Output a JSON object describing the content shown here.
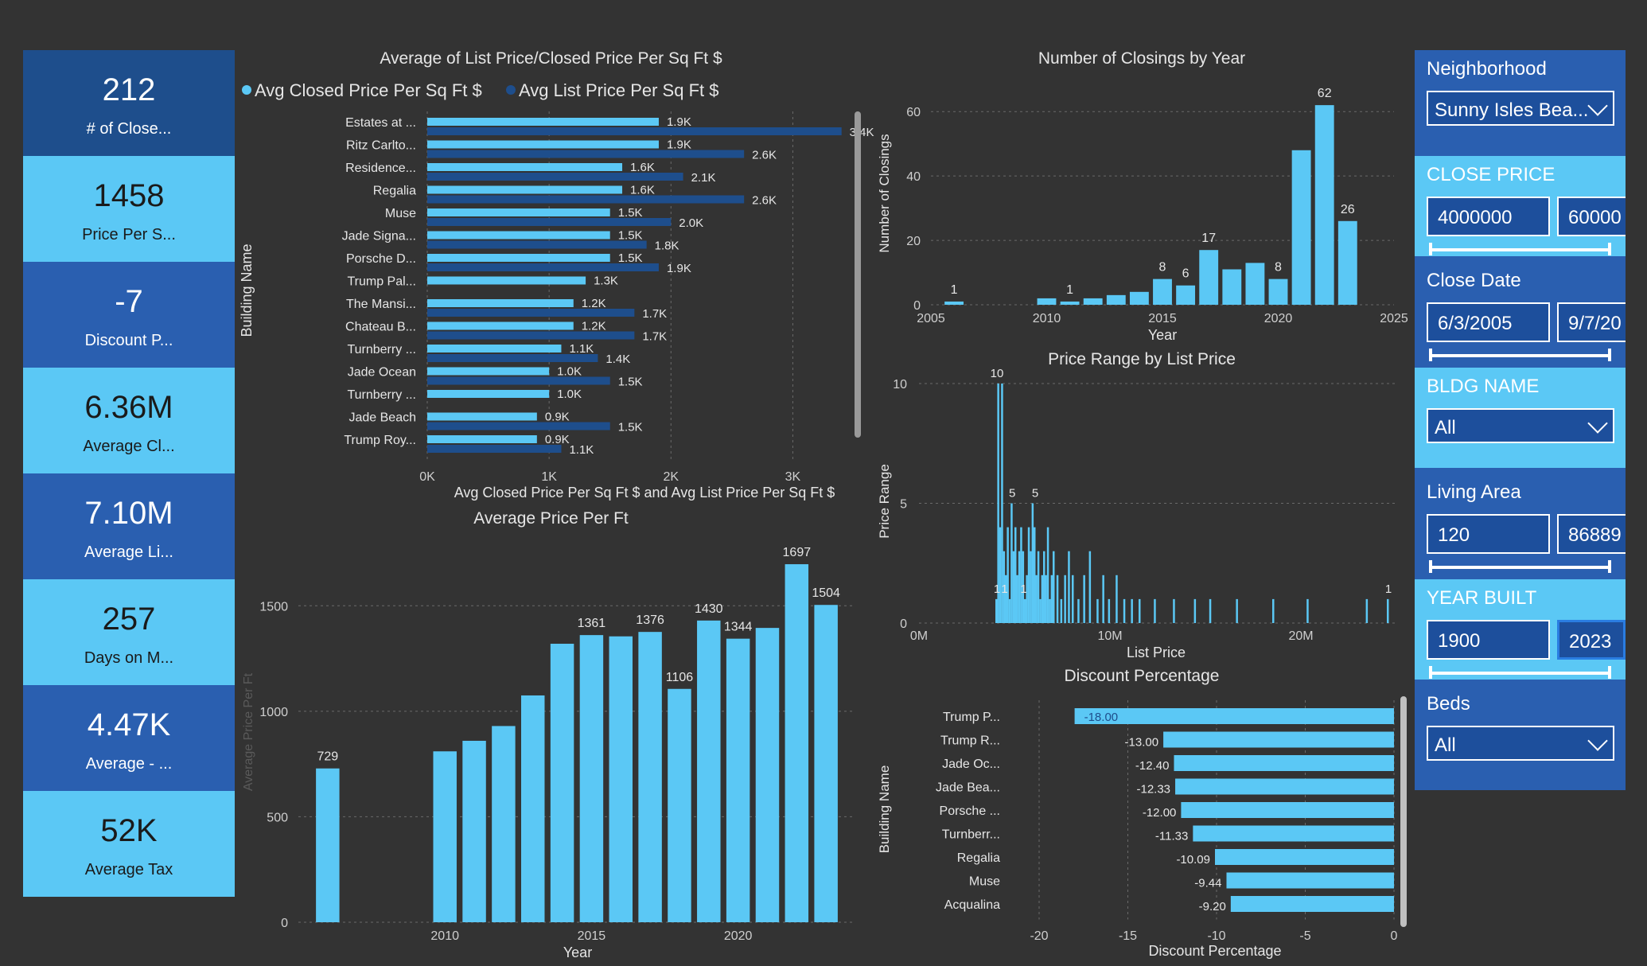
{
  "kpis": [
    {
      "value": "212",
      "label": "# of Close...",
      "color": "#1e4e8c"
    },
    {
      "value": "1458",
      "label": "Price Per S...",
      "color": "#5bc8f5"
    },
    {
      "value": "-7",
      "label": "Discount P...",
      "color": "#2a5fb0"
    },
    {
      "value": "6.36M",
      "label": "Average Cl...",
      "color": "#5bc8f5"
    },
    {
      "value": "7.10M",
      "label": "Average Li...",
      "color": "#2a5fb0"
    },
    {
      "value": "257",
      "label": "Days on M...",
      "color": "#5bc8f5"
    },
    {
      "value": "4.47K",
      "label": "Average - ...",
      "color": "#2a5fb0"
    },
    {
      "value": "52K",
      "label": "Average Tax",
      "color": "#5bc8f5"
    }
  ],
  "slicers": {
    "neighborhood": {
      "title": "Neighborhood",
      "value": "Sunny Isles Bea..."
    },
    "close_price": {
      "title": "CLOSE PRICE",
      "min": "4000000",
      "max": "60000"
    },
    "close_date": {
      "title": "Close Date",
      "min": "6/3/2005",
      "max": "9/7/20"
    },
    "bldg_name": {
      "title": "BLDG NAME",
      "value": "All"
    },
    "living_area": {
      "title": "Living Area",
      "min": "120",
      "max": "86889"
    },
    "year_built": {
      "title": "YEAR BUILT",
      "min": "1900",
      "max": "2023"
    },
    "beds": {
      "title": "Beds",
      "value": "All"
    }
  },
  "colors": {
    "light_blue": "#5bc8f5",
    "dark_blue": "#1e4e8c",
    "mid_blue": "#2a5fb0",
    "background": "#333333"
  },
  "chart_data": [
    {
      "id": "price_per_sqft",
      "type": "bar",
      "orientation": "horizontal",
      "title": "Average of List Price/Closed Price Per Sq Ft $",
      "xlabel": "Avg Closed Price Per Sq Ft $ and Avg List Price Per Sq Ft $",
      "ylabel": "Building Name",
      "legend_position": "top",
      "xlim": [
        0,
        3500
      ],
      "x_ticks": [
        "0K",
        "1K",
        "2K",
        "3K"
      ],
      "categories": [
        "Estates at ...",
        "Ritz Carlto...",
        "Residence...",
        "Regalia",
        "Muse",
        "Jade Signa...",
        "Porsche D...",
        "Trump Pal...",
        "The Mansi...",
        "Chateau B...",
        "Turnberry ...",
        "Jade Ocean",
        "Turnberry ...",
        "Jade Beach",
        "Trump Roy..."
      ],
      "series": [
        {
          "name": "Avg Closed Price Per Sq Ft $",
          "color": "#5bc8f5",
          "values": [
            1900,
            1900,
            1600,
            1600,
            1500,
            1500,
            1500,
            1300,
            1200,
            1200,
            1100,
            1000,
            1000,
            900,
            900
          ],
          "labels": [
            "1.9K",
            "1.9K",
            "1.6K",
            "1.6K",
            "1.5K",
            "1.5K",
            "1.5K",
            "1.3K",
            "1.2K",
            "1.2K",
            "1.1K",
            "1.0K",
            "1.0K",
            "0.9K",
            "0.9K"
          ]
        },
        {
          "name": "Avg List Price Per Sq Ft $",
          "color": "#1e4e8c",
          "values": [
            3400,
            2600,
            2100,
            2600,
            2000,
            1800,
            1900,
            null,
            1700,
            1700,
            1400,
            1500,
            null,
            1500,
            1100
          ],
          "labels": [
            "3.4K",
            "2.6K",
            "2.1K",
            "2.6K",
            "2.0K",
            "1.8K",
            "1.9K",
            "",
            "1.7K",
            "1.7K",
            "1.4K",
            "1.5K",
            "",
            "1.5K",
            "1.1K"
          ]
        }
      ]
    },
    {
      "id": "closings_by_year",
      "type": "bar",
      "title": "Number of Closings by Year",
      "xlabel": "Year",
      "ylabel": "Number of Closings",
      "xlim": [
        2005,
        2025
      ],
      "ylim": [
        0,
        65
      ],
      "x_ticks": [
        2005,
        2010,
        2015,
        2020,
        2025
      ],
      "y_ticks": [
        0,
        20,
        40,
        60
      ],
      "x": [
        2006,
        2010,
        2011,
        2012,
        2013,
        2014,
        2015,
        2016,
        2017,
        2018,
        2019,
        2020,
        2021,
        2022,
        2023
      ],
      "values": [
        1,
        2,
        1,
        2,
        3,
        4,
        8,
        6,
        17,
        11,
        13,
        8,
        48,
        62,
        26
      ],
      "labels": [
        "1",
        "",
        "1",
        "",
        "",
        "",
        "8",
        "6",
        "17",
        "",
        "",
        "8",
        "",
        "62",
        "26"
      ]
    },
    {
      "id": "avg_price_per_ft",
      "type": "bar",
      "title": "Average Price Per Ft",
      "xlabel": "Year",
      "ylabel": "Average Price Per Ft",
      "xlim": [
        2005,
        2024
      ],
      "ylim": [
        0,
        1750
      ],
      "x_ticks": [
        2010,
        2015,
        2020
      ],
      "y_ticks": [
        0,
        500,
        1000,
        1500
      ],
      "x": [
        2006,
        2010,
        2011,
        2012,
        2013,
        2014,
        2015,
        2016,
        2017,
        2018,
        2019,
        2020,
        2021,
        2022,
        2023
      ],
      "values": [
        729,
        810,
        860,
        930,
        1075,
        1320,
        1361,
        1355,
        1376,
        1106,
        1430,
        1344,
        1395,
        1697,
        1504
      ],
      "labels": [
        "729",
        "",
        "",
        "",
        "",
        "",
        "1361",
        "",
        "1376",
        "1106",
        "1430",
        "1344",
        "",
        "1697",
        "1504"
      ]
    },
    {
      "id": "price_range",
      "type": "bar",
      "title": "Price Range by List Price",
      "xlabel": "List Price",
      "ylabel": "Price Range",
      "xlim": [
        0,
        25
      ],
      "ylim": [
        0,
        10
      ],
      "x_ticks": [
        "0M",
        "10M",
        "20M"
      ],
      "y_ticks": [
        0,
        5,
        10
      ],
      "x": [
        4.0,
        4.1,
        4.2,
        4.3,
        4.4,
        4.5,
        4.6,
        4.7,
        4.8,
        4.9,
        5.0,
        5.1,
        5.2,
        5.3,
        5.4,
        5.5,
        5.6,
        5.7,
        5.8,
        5.9,
        6.0,
        6.1,
        6.2,
        6.3,
        6.4,
        6.5,
        6.6,
        6.7,
        6.8,
        6.9,
        7.0,
        7.2,
        7.4,
        7.6,
        7.8,
        8.0,
        8.3,
        8.6,
        8.9,
        9.3,
        9.6,
        9.9,
        10.3,
        10.7,
        11.1,
        11.5,
        12.3,
        13.3,
        14.4,
        15.2,
        16.6,
        18.5,
        20.3,
        23.4,
        24.5
      ],
      "values": [
        1,
        10,
        4,
        10,
        3,
        2,
        4,
        1,
        5,
        3,
        4,
        2,
        3,
        4,
        3,
        1,
        2,
        4,
        3,
        5,
        4,
        2,
        3,
        1,
        2,
        3,
        2,
        4,
        1,
        2,
        3,
        2,
        1,
        2,
        3,
        2,
        1,
        2,
        3,
        1,
        2,
        1,
        2,
        1,
        1,
        1,
        1,
        1,
        1,
        1,
        1,
        1,
        1,
        1,
        1
      ],
      "annotations": [
        "10",
        "5",
        "5",
        "1",
        "1",
        "1",
        "1"
      ]
    },
    {
      "id": "discount_pct",
      "type": "bar",
      "orientation": "horizontal",
      "title": "Discount Percentage",
      "xlabel": "Discount Percentage",
      "ylabel": "Building Name",
      "xlim": [
        -20,
        0
      ],
      "x_ticks": [
        -20,
        -15,
        -10,
        -5,
        0
      ],
      "categories": [
        "Trump P...",
        "Trump R...",
        "Jade Oc...",
        "Jade Bea...",
        "Porsche ...",
        "Turnberr...",
        "Regalia",
        "Muse",
        "Acqualina"
      ],
      "values": [
        -18.0,
        -13.0,
        -12.4,
        -12.33,
        -12.0,
        -11.33,
        -10.09,
        -9.44,
        -9.2
      ],
      "labels": [
        "-18.00",
        "-13.00",
        "-12.40",
        "-12.33",
        "-12.00",
        "-11.33",
        "-10.09",
        "-9.44",
        "-9.20"
      ]
    }
  ]
}
